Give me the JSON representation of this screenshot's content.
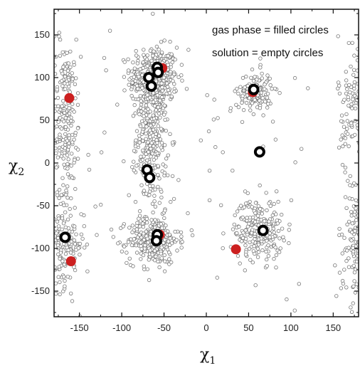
{
  "chart_data": {
    "type": "scatter",
    "title": "",
    "xlabel": "χ",
    "xlabel_sub": "1",
    "ylabel": "χ",
    "ylabel_sub": "2",
    "xlim": [
      -180,
      180
    ],
    "ylim": [
      -180,
      180
    ],
    "x_ticks": [
      -150,
      -100,
      -50,
      0,
      50,
      100,
      150
    ],
    "y_ticks": [
      -150,
      -100,
      -50,
      0,
      50,
      100,
      150
    ],
    "grid": false,
    "legend": "none",
    "annotations": [
      "gas phase = filled circles",
      "solution = empty circles"
    ],
    "colors": {
      "gas_phase": "#cc2020",
      "solution_cluster": "#000000",
      "background_points": "#777777"
    },
    "background_clusters": [
      {
        "cx": -62,
        "cy": 100,
        "sx": 14,
        "sy": 18,
        "n": 380
      },
      {
        "cx": -65,
        "cy": 30,
        "sx": 9,
        "sy": 40,
        "n": 330
      },
      {
        "cx": -63,
        "cy": -90,
        "sx": 15,
        "sy": 14,
        "n": 300
      },
      {
        "cx": -168,
        "cy": 55,
        "sx": 10,
        "sy": 45,
        "n": 230
      },
      {
        "cx": -168,
        "cy": -95,
        "sx": 12,
        "sy": 25,
        "n": 170
      },
      {
        "cx": 58,
        "cy": 83,
        "sx": 10,
        "sy": 12,
        "n": 140
      },
      {
        "cx": 62,
        "cy": -78,
        "sx": 14,
        "sy": 18,
        "n": 240
      },
      {
        "cx": 180,
        "cy": 65,
        "sx": 12,
        "sy": 45,
        "n": 170
      },
      {
        "cx": 180,
        "cy": -95,
        "sx": 12,
        "sy": 30,
        "n": 170
      },
      {
        "cx": 0,
        "cy": 0,
        "sx": 100,
        "sy": 80,
        "n": 80
      }
    ],
    "series": [
      {
        "name": "gas phase = filled circles",
        "points": [
          [
            -162,
            76
          ],
          [
            -52,
            111
          ],
          [
            -160,
            -115
          ],
          [
            -55,
            -84
          ],
          [
            55,
            83
          ],
          [
            35,
            -101
          ]
        ]
      },
      {
        "name": "solution = empty circles",
        "points": [
          [
            -58,
            112
          ],
          [
            -57,
            106
          ],
          [
            -68,
            100
          ],
          [
            -65,
            90
          ],
          [
            -70,
            -8
          ],
          [
            -67,
            -17
          ],
          [
            -58,
            -84
          ],
          [
            -59,
            -91
          ],
          [
            -167,
            -87
          ],
          [
            56,
            86
          ],
          [
            63,
            13
          ],
          [
            67,
            -79
          ]
        ]
      }
    ]
  }
}
